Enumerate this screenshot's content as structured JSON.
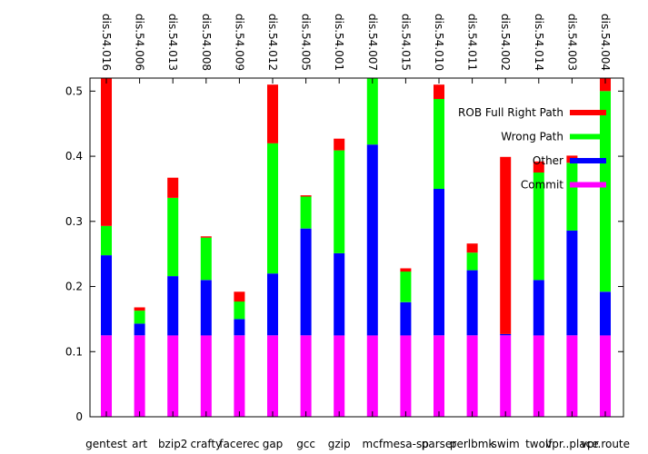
{
  "chart_data": {
    "type": "bar",
    "stacked": true,
    "categories": [
      "gentest",
      "art",
      "bzip2",
      "crafty",
      "facerec",
      "gap",
      "gcc",
      "gzip",
      "mcf",
      "mesa-sp",
      "parser",
      "perlbmk",
      "swim",
      "twolf",
      "vpr..place",
      "vpr.route"
    ],
    "top_labels": [
      "dis.54.016",
      "dis.54.006",
      "dis.54.013",
      "dis.54.008",
      "dis.54.009",
      "dis.54.012",
      "dis.54.005",
      "dis.54.001",
      "dis.54.007",
      "dis.54.015",
      "dis.54.010",
      "dis.54.011",
      "dis.54.002",
      "dis.54.014",
      "dis.54.003",
      "dis.54.004"
    ],
    "series": [
      {
        "name": "Commit",
        "color": "#ff00ff",
        "values": [
          0.125,
          0.125,
          0.125,
          0.125,
          0.125,
          0.125,
          0.125,
          0.125,
          0.125,
          0.125,
          0.125,
          0.125,
          0.125,
          0.125,
          0.125,
          0.125
        ]
      },
      {
        "name": "Other",
        "color": "#0000ff",
        "values": [
          0.123,
          0.018,
          0.091,
          0.085,
          0.025,
          0.095,
          0.164,
          0.126,
          0.293,
          0.051,
          0.225,
          0.1,
          0.002,
          0.085,
          0.161,
          0.067
        ]
      },
      {
        "name": "Wrong Path",
        "color": "#00ff00",
        "values": [
          0.045,
          0.02,
          0.12,
          0.065,
          0.027,
          0.2,
          0.049,
          0.158,
          0.105,
          0.047,
          0.138,
          0.027,
          0.0,
          0.165,
          0.104,
          0.308
        ]
      },
      {
        "name": "ROB Full Right Path",
        "color": "#ff0000",
        "values": [
          0.228,
          0.005,
          0.031,
          0.002,
          0.015,
          0.09,
          0.002,
          0.018,
          0.0,
          0.005,
          0.022,
          0.014,
          0.272,
          0.017,
          0.011,
          0.022
        ]
      }
    ],
    "legend_order": [
      "ROB Full Right Path",
      "Wrong Path",
      "Other",
      "Commit"
    ],
    "legend_position": "top-right",
    "yticks": [
      "0",
      "0.1",
      "0.2",
      "0.3",
      "0.4",
      "0.5"
    ],
    "ylim": [
      0,
      0.52
    ],
    "grid": false
  }
}
